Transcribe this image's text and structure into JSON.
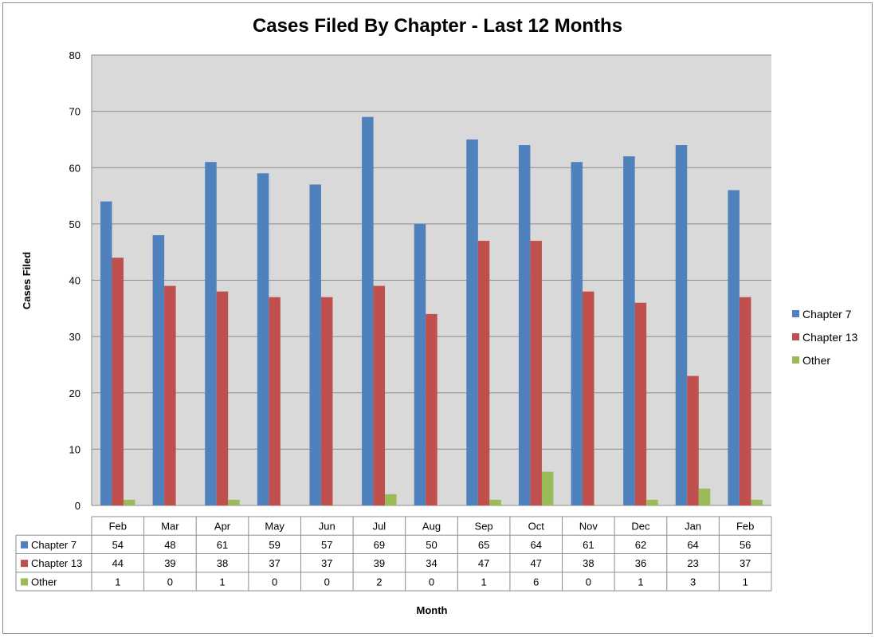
{
  "chart_data": {
    "type": "bar",
    "title": "Cases Filed By Chapter - Last 12 Months",
    "xlabel": "Month",
    "ylabel": "Cases Filed",
    "ylim": [
      0,
      80
    ],
    "yticks": [
      0,
      10,
      20,
      30,
      40,
      50,
      60,
      70,
      80
    ],
    "grid": true,
    "legend_position": "right",
    "data_table": true,
    "categories": [
      "Feb",
      "Mar",
      "Apr",
      "May",
      "Jun",
      "Jul",
      "Aug",
      "Sep",
      "Oct",
      "Nov",
      "Dec",
      "Jan",
      "Feb"
    ],
    "series": [
      {
        "name": "Chapter 7",
        "color": "#4f81bd",
        "values": [
          54,
          48,
          61,
          59,
          57,
          69,
          50,
          65,
          64,
          61,
          62,
          64,
          56
        ]
      },
      {
        "name": "Chapter 13",
        "color": "#c0504d",
        "values": [
          44,
          39,
          38,
          37,
          37,
          39,
          34,
          47,
          47,
          38,
          36,
          23,
          37
        ]
      },
      {
        "name": "Other",
        "color": "#9bbb59",
        "values": [
          1,
          0,
          1,
          0,
          0,
          2,
          0,
          1,
          6,
          0,
          1,
          3,
          1
        ]
      }
    ],
    "plot_background": "#d9d9d9",
    "gridline_color": "#8c8c8c"
  }
}
